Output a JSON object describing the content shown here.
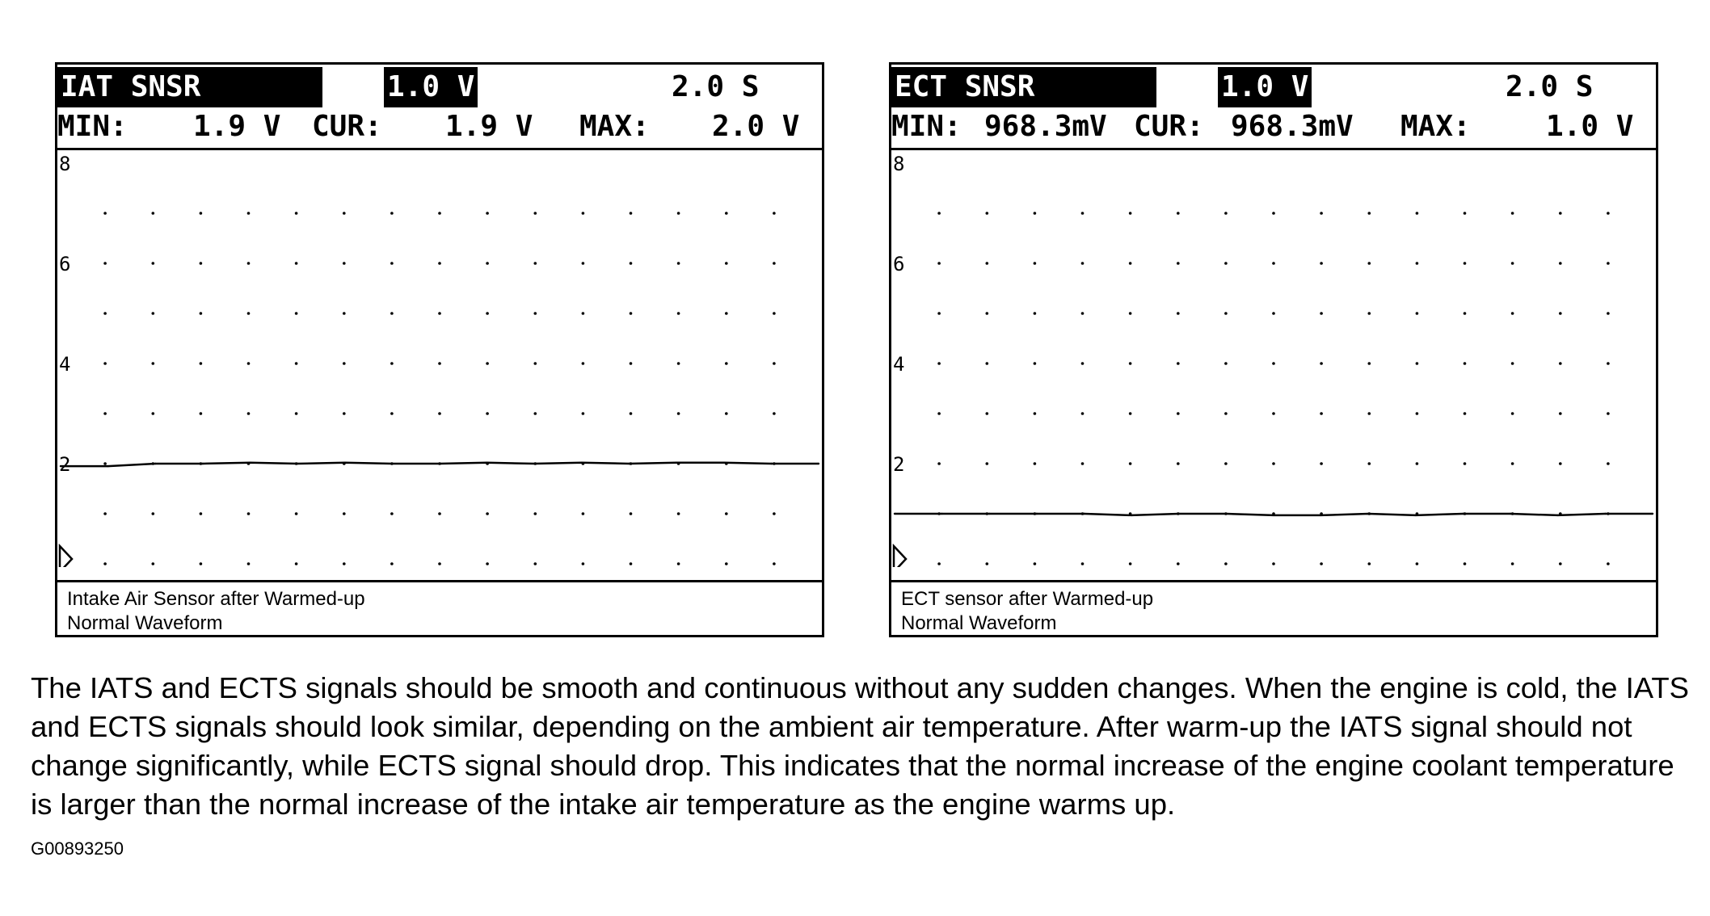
{
  "chart_data": [
    {
      "type": "line",
      "channel": "IAT SNSR",
      "volts_per_div": "1.0 V",
      "time_per_div": "2.0 S",
      "min_label": "MIN:",
      "min_value": "1.9 V",
      "cur_label": "CUR:",
      "cur_value": "1.9 V",
      "max_label": "MAX:",
      "max_value": "2.0 V",
      "y_ticks": [
        "8",
        "6",
        "4",
        "2"
      ],
      "ylim": [
        0,
        8
      ],
      "series": [
        {
          "x": [
            0,
            1,
            2,
            3,
            4,
            5,
            6,
            7,
            8,
            9,
            10,
            11,
            12,
            13,
            14,
            15,
            16
          ],
          "values": [
            1.95,
            1.95,
            2.0,
            2.0,
            2.02,
            2.0,
            2.02,
            2.0,
            2.0,
            2.02,
            2.0,
            2.02,
            2.0,
            2.02,
            2.02,
            2.0,
            2.0
          ]
        }
      ],
      "caption_line1": "Intake Air Sensor after Warmed-up",
      "caption_line2": "Normal Waveform"
    },
    {
      "type": "line",
      "channel": "ECT SNSR",
      "volts_per_div": "1.0 V",
      "time_per_div": "2.0 S",
      "min_label": "MIN:",
      "min_value": "968.3mV",
      "cur_label": "CUR:",
      "cur_value": "968.3mV",
      "max_label": "MAX:",
      "max_value": "1.0 V",
      "y_ticks": [
        "8",
        "6",
        "4",
        "2"
      ],
      "ylim": [
        0,
        8
      ],
      "series": [
        {
          "x": [
            0,
            1,
            2,
            3,
            4,
            5,
            6,
            7,
            8,
            9,
            10,
            11,
            12,
            13,
            14,
            15,
            16
          ],
          "values": [
            1.0,
            1.0,
            1.0,
            1.0,
            1.0,
            0.97,
            1.0,
            1.0,
            0.97,
            0.97,
            1.0,
            0.97,
            1.0,
            1.0,
            0.97,
            1.0,
            1.0
          ]
        }
      ],
      "caption_line1": "ECT sensor after Warmed-up",
      "caption_line2": "Normal Waveform"
    }
  ],
  "body_text": "The IATS and ECTS signals should be smooth and continuous without any sudden changes. When the engine is cold, the IATS and ECTS signals should look similar, depending on the ambient air temperature. After warm-up the IATS signal should not change significantly, while ECTS signal should drop. This indicates that the normal increase of the engine coolant temperature is larger than the normal increase of the intake air temperature as the engine warms up.",
  "figure_id": "G00893250"
}
